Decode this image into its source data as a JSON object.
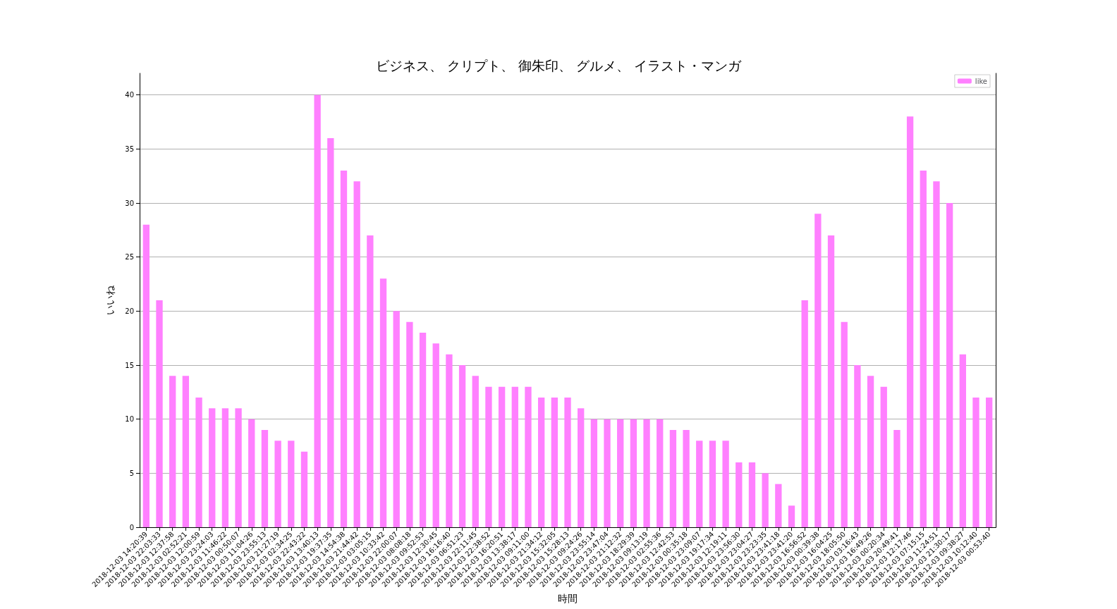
{
  "chart_data": {
    "type": "bar",
    "title": "ビジネス、 クリプト、 御朱印、 グルメ、 イラスト・マンガ",
    "xlabel": "時間",
    "ylabel": "いいね",
    "categories": [
      "2018-12-03 14:20:39",
      "2018-12-03 22:03:33",
      "2018-12-03 12:37:58",
      "2018-12-03 02:52:21",
      "2018-12-03 12:00:59",
      "2018-12-03 23:24:03",
      "2018-12-03 11:46:22",
      "2018-12-03 00:50:07",
      "2018-12-03 11:04:26",
      "2018-12-03 23:55:13",
      "2018-12-03 21:27:19",
      "2018-12-03 02:34:25",
      "2018-12-03 22:43:22",
      "2018-12-03 13:40:13",
      "2018-12-03 19:37:35",
      "2018-12-03 14:54:38",
      "2018-12-03 21:44:42",
      "2018-12-03 03:05:15",
      "2018-12-03 10:33:42",
      "2018-12-03 22:00:07",
      "2018-12-03 08:08:18",
      "2018-12-03 09:52:53",
      "2018-12-03 12:30:45",
      "2018-12-03 16:16:40",
      "2018-12-03 06:51:23",
      "2018-12-03 22:11:45",
      "2018-12-03 22:38:52",
      "2018-12-03 16:20:51",
      "2018-12-03 13:38:17",
      "2018-12-03 09:11:00",
      "2018-12-03 21:34:12",
      "2018-12-03 15:32:05",
      "2018-12-03 15:28:13",
      "2018-12-03 09:24:26",
      "2018-12-03 23:55:14",
      "2018-12-03 23:47:04",
      "2018-12-03 21:12:32",
      "2018-12-03 18:29:39",
      "2018-12-03 09:13:19",
      "2018-12-03 02:55:36",
      "2018-12-03 12:42:53",
      "2018-12-03 00:35:18",
      "2018-12-03 23:09:07",
      "2018-12-03 19:17:34",
      "2018-12-03 12:19:11",
      "2018-12-03 23:56:30",
      "2018-12-03 23:04:27",
      "2018-12-03 23:23:35",
      "2018-12-03 23:41:18",
      "2018-12-03 23:41:20",
      "2018-12-03 16:56:52",
      "2018-12-03 00:39:38",
      "2018-12-03 16:04:25",
      "2018-12-03 18:05:50",
      "2018-12-03 03:16:43",
      "2018-12-03 16:49:26",
      "2018-12-03 00:20:34",
      "2018-12-03 20:49:41",
      "2018-12-03 12:17:46",
      "2018-12-03 07:15:15",
      "2018-12-03 11:24:51",
      "2018-12-03 21:30:17",
      "2018-12-03 09:38:27",
      "2018-12-03 10:12:40",
      "2018-12-03 00:53:40"
    ],
    "series": [
      {
        "name": "like",
        "color": "#ff80ff",
        "values": [
          28,
          21,
          14,
          14,
          12,
          11,
          11,
          11,
          10,
          9,
          8,
          8,
          7,
          40,
          36,
          33,
          32,
          27,
          23,
          20,
          19,
          18,
          17,
          16,
          15,
          14,
          13,
          13,
          13,
          13,
          12,
          12,
          12,
          11,
          10,
          10,
          10,
          10,
          10,
          10,
          9,
          9,
          8,
          8,
          8,
          6,
          6,
          5,
          4,
          2,
          21,
          29,
          27,
          19,
          15,
          14,
          13,
          9,
          38,
          33,
          32,
          30,
          16,
          12,
          12
        ]
      }
    ],
    "ylim": [
      0,
      42
    ],
    "yticks": [
      0,
      5,
      10,
      15,
      20,
      25,
      30,
      35,
      40
    ],
    "grid": "y",
    "legend": "top right"
  }
}
